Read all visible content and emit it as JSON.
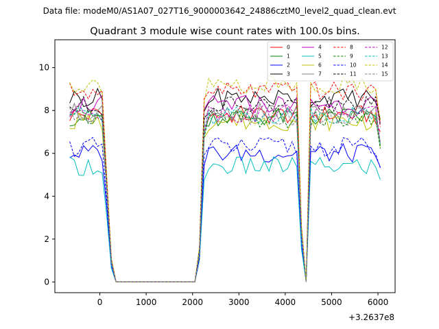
{
  "chart_data": {
    "type": "line",
    "suptitle": "Data file: modeM0/AS1A07_027T16_9000003642_24886cztM0_level2_quad_clean.evt",
    "title": "Quadrant 3 module wise count rates with 100.0s bins.",
    "xlabel": "",
    "ylabel": "",
    "x_offset_label": "+3.2637e8",
    "xlim": [
      -970,
      6370
    ],
    "ylim": [
      -0.5,
      11.3
    ],
    "xticks": [
      0,
      1000,
      2000,
      3000,
      4000,
      5000,
      6000
    ],
    "yticks": [
      0,
      2,
      4,
      6,
      8,
      10
    ],
    "grid": false,
    "legend": "top-right",
    "segments": [
      {
        "x": [
          -650,
          -550,
          -450,
          -350,
          -250,
          -150,
          -50,
          50,
          150,
          250,
          350,
          450,
          550,
          650,
          750,
          850,
          950,
          1050,
          1150,
          1250,
          1350,
          1450,
          1550,
          1650,
          1750,
          1850,
          1950,
          2050,
          2150,
          2250,
          2350,
          2450,
          2550,
          2650,
          2750,
          2850,
          2950,
          3050,
          3150,
          3250,
          3350,
          3450,
          3550,
          3650,
          3750,
          3850,
          3950,
          4050,
          4150,
          4250,
          4350,
          4450,
          4550,
          4650,
          4750,
          4850,
          4950,
          5050,
          5150,
          5250,
          5350,
          5450,
          5550,
          5650,
          5750,
          5850,
          5950,
          6050
        ]
      }
    ],
    "level_shape": [
      1,
      1,
      1,
      1,
      1,
      1,
      1,
      1,
      0.55,
      0.12,
      0,
      0,
      0,
      0,
      0,
      0,
      0,
      0,
      0,
      0,
      0,
      0,
      0,
      0,
      0,
      0,
      0,
      0,
      0.18,
      0.92,
      1,
      1,
      1,
      1,
      1,
      1,
      1,
      1,
      1,
      1,
      1,
      1,
      1,
      1,
      1,
      1,
      1,
      1,
      1,
      1,
      0.3,
      0,
      1,
      1,
      1,
      1,
      1,
      1,
      1,
      1,
      1,
      1,
      1,
      1,
      1,
      1,
      1,
      0.85
    ],
    "series": [
      {
        "name": "0",
        "color": "#ff0000",
        "dashed": false,
        "level": 7.8
      },
      {
        "name": "1",
        "color": "#008000",
        "dashed": false,
        "level": 7.7
      },
      {
        "name": "2",
        "color": "#0000ff",
        "dashed": false,
        "level": 6.0
      },
      {
        "name": "3",
        "color": "#000000",
        "dashed": false,
        "level": 8.6
      },
      {
        "name": "4",
        "color": "#bf00bf",
        "dashed": false,
        "level": 8.3
      },
      {
        "name": "5",
        "color": "#00bfbf",
        "dashed": false,
        "level": 5.4
      },
      {
        "name": "6",
        "color": "#bfbf00",
        "dashed": false,
        "level": 7.5
      },
      {
        "name": "7",
        "color": "#808080",
        "dashed": false,
        "level": 7.9
      },
      {
        "name": "8",
        "color": "#ff0000",
        "dashed": true,
        "level": 8.9
      },
      {
        "name": "9",
        "color": "#008000",
        "dashed": true,
        "level": 7.6
      },
      {
        "name": "10",
        "color": "#0000ff",
        "dashed": true,
        "level": 6.3
      },
      {
        "name": "11",
        "color": "#000000",
        "dashed": true,
        "level": 8.2
      },
      {
        "name": "12",
        "color": "#bf00bf",
        "dashed": true,
        "level": 7.9
      },
      {
        "name": "13",
        "color": "#00bfbf",
        "dashed": true,
        "level": 7.8
      },
      {
        "name": "14",
        "color": "#bfbf00",
        "dashed": true,
        "level": 9.2
      },
      {
        "name": "15",
        "color": "#808080",
        "dashed": true,
        "level": 7.7
      }
    ]
  }
}
